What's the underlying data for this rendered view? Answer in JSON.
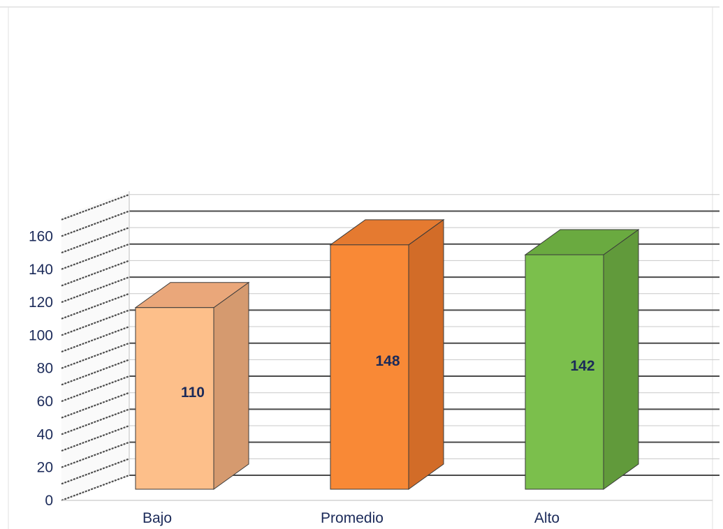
{
  "chart_data": {
    "type": "bar",
    "title": "",
    "xlabel": "",
    "ylabel": "",
    "categories": [
      "Bajo",
      "Promedio",
      "Alto"
    ],
    "values": [
      110,
      148,
      142
    ],
    "data_labels": [
      "110",
      "148",
      "142"
    ],
    "ylim": [
      0,
      160
    ],
    "y_ticks": [
      0,
      20,
      40,
      60,
      80,
      100,
      120,
      140,
      160
    ],
    "grid": true,
    "three_d": true,
    "colors": {
      "Bajo": {
        "front": "#fdbf8a",
        "side": "#d59a6f",
        "top": "#eaa77a"
      },
      "Promedio": {
        "front": "#f98936",
        "side": "#d26c28",
        "top": "#e57a30"
      },
      "Alto": {
        "front": "#7bbf4c",
        "side": "#619a3b",
        "top": "#6aaa40"
      },
      "text": "#1b2a59",
      "gridline": "#555555"
    }
  }
}
